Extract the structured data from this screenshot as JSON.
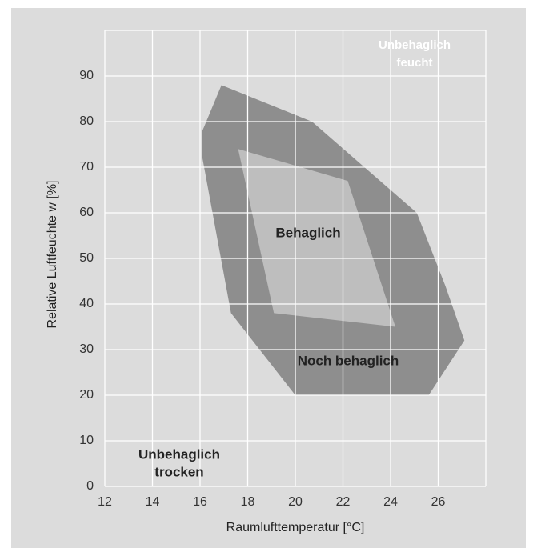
{
  "chart_data": {
    "type": "polygon",
    "xlabel": "Raumlufttemperatur [°C]",
    "ylabel": "Relative Luftfeuchte w [%]",
    "xlim": [
      12,
      28
    ],
    "xticks": [
      12,
      14,
      16,
      18,
      20,
      22,
      24,
      26
    ],
    "ylim": [
      0,
      100
    ],
    "yticks": [
      0,
      10,
      20,
      30,
      40,
      50,
      60,
      70,
      80,
      90
    ],
    "grid": true,
    "series": [
      {
        "name": "Noch behaglich",
        "color": "#8e8e8e",
        "x": [
          16.9,
          20.7,
          25.1,
          26.3,
          27.1,
          25.6,
          20,
          17.3,
          16.1,
          16.1
        ],
        "y": [
          88,
          80,
          60,
          44,
          32,
          20,
          20,
          38,
          72,
          78
        ]
      },
      {
        "name": "Behaglich",
        "color": "#bebebe",
        "x": [
          17.6,
          22.2,
          24.2,
          19.1
        ],
        "y": [
          74,
          67,
          35,
          38
        ]
      }
    ],
    "annotations": [
      [
        "Unbehaglich",
        "feucht"
      ],
      [
        "Unbehaglich",
        "trocken"
      ]
    ]
  }
}
